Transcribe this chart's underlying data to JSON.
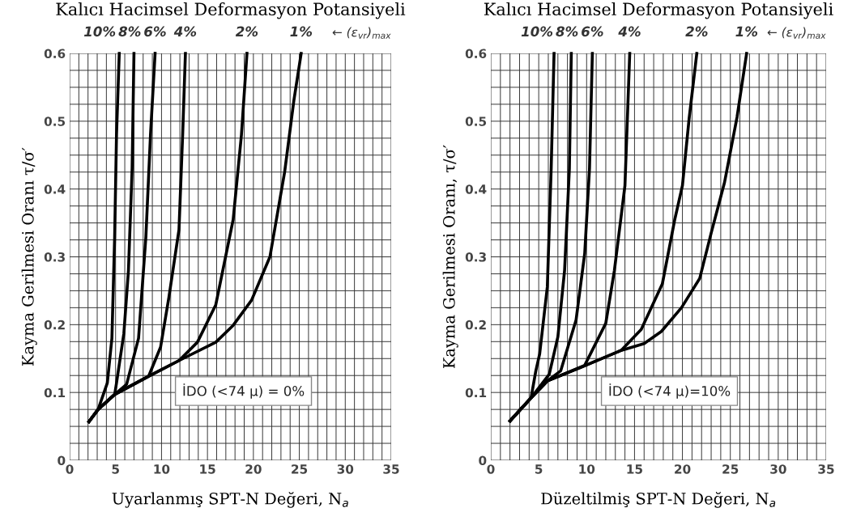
{
  "chart_data": [
    {
      "type": "line",
      "title": "Kalıcı Hacimsel Deformasyon Potansiyeli",
      "xlabel": "Uyarlanmış SPT-N Değeri, N$_{a}$",
      "ylabel": "Kayma Gerilmesi Oranı τ/σ′",
      "xlim": [
        0,
        35
      ],
      "xticks": [
        0,
        5,
        10,
        15,
        20,
        25,
        30,
        35
      ],
      "ylim": [
        0,
        0.6
      ],
      "yticks": [
        0,
        0.1,
        0.2,
        0.3,
        0.4,
        0.5,
        0.6
      ],
      "grid": true,
      "marker": "none",
      "line_style": "solid",
      "annotations": [
        "← (ε$_{vr}$)$_{max}$",
        "İDO (<74 μ) = 0%"
      ],
      "series": [
        {
          "name": "10%",
          "color": "#000000",
          "x": [
            2.1,
            3.1,
            4.1,
            4.6,
            4.9,
            5.1,
            5.4
          ],
          "values": [
            0.057,
            0.075,
            0.114,
            0.18,
            0.33,
            0.48,
            0.6
          ]
        },
        {
          "name": "8%",
          "color": "#000000",
          "x": [
            2.1,
            3.1,
            4.9,
            5.1,
            5.9,
            6.4,
            6.8,
            7.0
          ],
          "values": [
            0.057,
            0.075,
            0.097,
            0.114,
            0.187,
            0.28,
            0.43,
            0.6
          ]
        },
        {
          "name": "6%",
          "color": "#000000",
          "x": [
            2.1,
            3.1,
            4.9,
            6.2,
            7.5,
            8.3,
            8.8,
            9.3
          ],
          "values": [
            0.057,
            0.075,
            0.097,
            0.112,
            0.18,
            0.33,
            0.48,
            0.6
          ]
        },
        {
          "name": "4%",
          "color": "#000000",
          "x": [
            2.1,
            3.1,
            4.9,
            8.6,
            9.9,
            10.8,
            11.9,
            12.3,
            12.6
          ],
          "values": [
            0.057,
            0.075,
            0.097,
            0.124,
            0.167,
            0.24,
            0.34,
            0.48,
            0.6
          ]
        },
        {
          "name": "2%",
          "color": "#000000",
          "x": [
            2.1,
            3.1,
            4.9,
            8.6,
            11.9,
            13.9,
            15.9,
            17.8,
            18.7,
            19.3
          ],
          "values": [
            0.057,
            0.075,
            0.097,
            0.124,
            0.147,
            0.174,
            0.229,
            0.355,
            0.48,
            0.6
          ]
        },
        {
          "name": "1%",
          "color": "#000000",
          "x": [
            2.1,
            3.1,
            4.9,
            8.6,
            11.9,
            15.9,
            17.8,
            19.8,
            21.8,
            23.4,
            24.4,
            25.2
          ],
          "values": [
            0.057,
            0.075,
            0.097,
            0.124,
            0.147,
            0.174,
            0.199,
            0.236,
            0.3,
            0.425,
            0.53,
            0.6
          ]
        }
      ]
    },
    {
      "type": "line",
      "title": "Kalıcı Hacimsel Deformasyon Potansiyeli",
      "xlabel": "Düzeltilmiş SPT-N Değeri, N$_{a}$",
      "ylabel": "Kayma Gerilmesi Oranı, τ/σ′",
      "xlim": [
        0,
        35
      ],
      "xticks": [
        0,
        5,
        10,
        15,
        20,
        25,
        30,
        35
      ],
      "ylim": [
        0,
        0.6
      ],
      "yticks": [
        0,
        0.1,
        0.2,
        0.3,
        0.4,
        0.5,
        0.6
      ],
      "grid": true,
      "marker": "none",
      "line_style": "solid",
      "annotations": [
        "← (ε$_{vr}$)$_{max}$",
        "İDO (<74 μ)=10%"
      ],
      "series": [
        {
          "name": "10%",
          "color": "#000000",
          "x": [
            2.0,
            4.2,
            4.7,
            5.1,
            5.9,
            6.3,
            6.6
          ],
          "values": [
            0.058,
            0.092,
            0.132,
            0.157,
            0.256,
            0.43,
            0.6
          ]
        },
        {
          "name": "8%",
          "color": "#000000",
          "x": [
            2.0,
            4.2,
            6.1,
            7.0,
            7.7,
            8.2,
            8.4
          ],
          "values": [
            0.058,
            0.092,
            0.127,
            0.182,
            0.28,
            0.43,
            0.6
          ]
        },
        {
          "name": "6%",
          "color": "#000000",
          "x": [
            2.0,
            4.2,
            5.9,
            7.3,
            8.9,
            9.8,
            10.3,
            10.6
          ],
          "values": [
            0.058,
            0.092,
            0.117,
            0.132,
            0.207,
            0.305,
            0.43,
            0.6
          ]
        },
        {
          "name": "4%",
          "color": "#000000",
          "x": [
            2.0,
            4.2,
            5.9,
            9.8,
            12.0,
            12.9,
            14.0,
            14.5
          ],
          "values": [
            0.058,
            0.092,
            0.117,
            0.14,
            0.202,
            0.28,
            0.405,
            0.6
          ]
        },
        {
          "name": "2%",
          "color": "#000000",
          "x": [
            2.0,
            4.2,
            5.9,
            9.4,
            13.6,
            15.7,
            17.9,
            19.2,
            20.0,
            20.7,
            21.5
          ],
          "values": [
            0.058,
            0.092,
            0.117,
            0.137,
            0.162,
            0.193,
            0.26,
            0.355,
            0.405,
            0.504,
            0.6
          ]
        },
        {
          "name": "1%",
          "color": "#000000",
          "x": [
            2.0,
            4.2,
            5.9,
            9.4,
            13.6,
            16.0,
            17.8,
            19.9,
            21.8,
            23.0,
            24.4,
            25.7,
            26.7
          ],
          "values": [
            0.058,
            0.092,
            0.117,
            0.137,
            0.162,
            0.172,
            0.19,
            0.225,
            0.268,
            0.335,
            0.41,
            0.506,
            0.6
          ]
        }
      ]
    }
  ]
}
